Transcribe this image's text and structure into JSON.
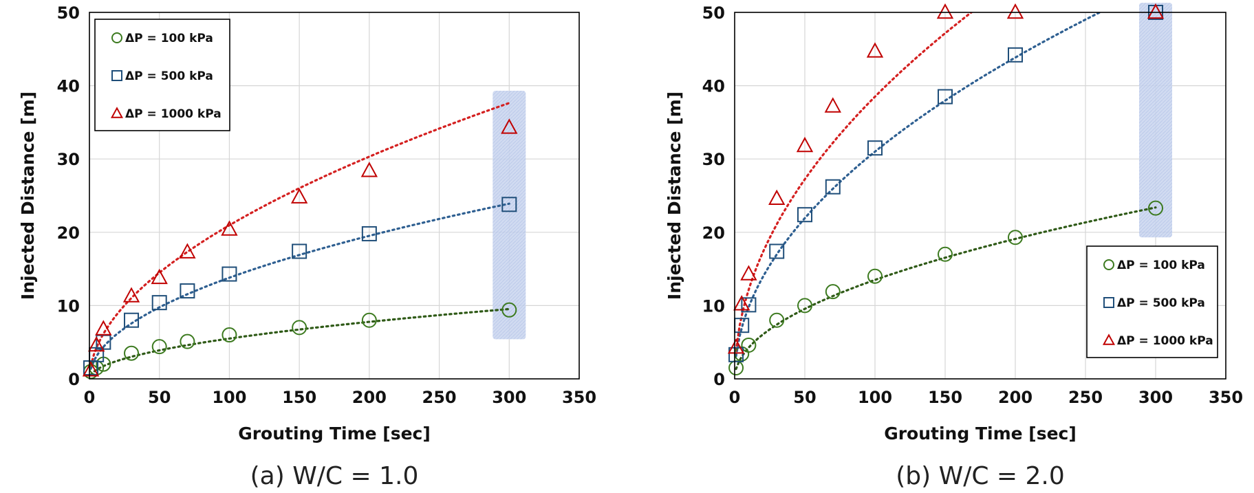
{
  "chart_data": [
    {
      "type": "scatter",
      "caption": "(a) W/C = 1.0",
      "xlabel": "Grouting Time [sec]",
      "ylabel": "Injected Distance [m]",
      "xlim": [
        0,
        350
      ],
      "ylim": [
        0,
        50
      ],
      "xticks": [
        "0",
        "50",
        "100",
        "150",
        "200",
        "250",
        "300",
        "350"
      ],
      "yticks": [
        "0",
        "10",
        "20",
        "30",
        "40",
        "50"
      ],
      "grid": true,
      "legend_position": "top-left",
      "highlight_x": 300,
      "series": [
        {
          "name": "ΔP = 100 kPa",
          "marker": "circle",
          "color": "#3c7a1f",
          "trend_color": "#2f5a17",
          "trend_a": 0.55,
          "trend_b": 0.5,
          "x": [
            1,
            5,
            10,
            30,
            50,
            70,
            100,
            150,
            200,
            300
          ],
          "y": [
            1.0,
            1.5,
            2.0,
            3.5,
            4.4,
            5.1,
            6.0,
            7.0,
            8.0,
            9.4
          ]
        },
        {
          "name": "ΔP = 500 kPa",
          "marker": "square",
          "color": "#1f4e79",
          "trend_color": "#2e5f91",
          "trend_a": 1.38,
          "trend_b": 0.5,
          "x": [
            1,
            5,
            10,
            30,
            50,
            70,
            100,
            150,
            200,
            300
          ],
          "y": [
            1.5,
            3.3,
            5.0,
            8.0,
            10.4,
            12.0,
            14.3,
            17.4,
            19.8,
            23.8
          ]
        },
        {
          "name": "ΔP = 1000 kPa",
          "marker": "triangle",
          "color": "#c00000",
          "trend_color": "#d42020",
          "trend_a": 1.8,
          "trend_b": 0.533,
          "x": [
            1,
            5,
            10,
            30,
            50,
            70,
            100,
            150,
            200,
            300
          ],
          "y": [
            1.2,
            4.6,
            6.8,
            11.3,
            13.8,
            17.3,
            20.4,
            24.8,
            28.4,
            34.3
          ]
        }
      ]
    },
    {
      "type": "scatter",
      "caption": "(b) W/C = 2.0",
      "xlabel": "Grouting Time [sec]",
      "ylabel": "Injected Distance [m]",
      "xlim": [
        0,
        350
      ],
      "ylim": [
        0,
        50
      ],
      "xticks": [
        "0",
        "50",
        "100",
        "150",
        "200",
        "250",
        "300",
        "350"
      ],
      "yticks": [
        "0",
        "10",
        "20",
        "30",
        "40",
        "50"
      ],
      "grid": true,
      "legend_position": "bottom-right",
      "highlight_x": 300,
      "series": [
        {
          "name": "ΔP = 100 kPa",
          "marker": "circle",
          "color": "#3c7a1f",
          "trend_color": "#2f5a17",
          "trend_a": 1.35,
          "trend_b": 0.5,
          "x": [
            1,
            5,
            10,
            30,
            50,
            70,
            100,
            150,
            200,
            300
          ],
          "y": [
            1.5,
            3.4,
            4.6,
            8.0,
            10.0,
            11.9,
            14.0,
            17.0,
            19.3,
            23.3
          ]
        },
        {
          "name": "ΔP = 500 kPa",
          "marker": "square",
          "color": "#1f4e79",
          "trend_color": "#2e5f91",
          "trend_a": 3.1,
          "trend_b": 0.5,
          "x": [
            1,
            5,
            10,
            30,
            50,
            70,
            100,
            150,
            200,
            300
          ],
          "y": [
            3.3,
            7.3,
            10.1,
            17.4,
            22.4,
            26.2,
            31.5,
            38.5,
            44.2,
            50.0
          ]
        },
        {
          "name": "ΔP = 1000 kPa",
          "marker": "triangle",
          "color": "#c00000",
          "trend_color": "#d42020",
          "trend_a": 3.85,
          "trend_b": 0.5,
          "x": [
            1,
            5,
            10,
            30,
            50,
            70,
            100,
            150,
            200,
            300
          ],
          "y": [
            4.3,
            10.2,
            14.3,
            24.6,
            31.8,
            37.2,
            44.7,
            50.0,
            50.0,
            50.0
          ]
        }
      ]
    }
  ]
}
